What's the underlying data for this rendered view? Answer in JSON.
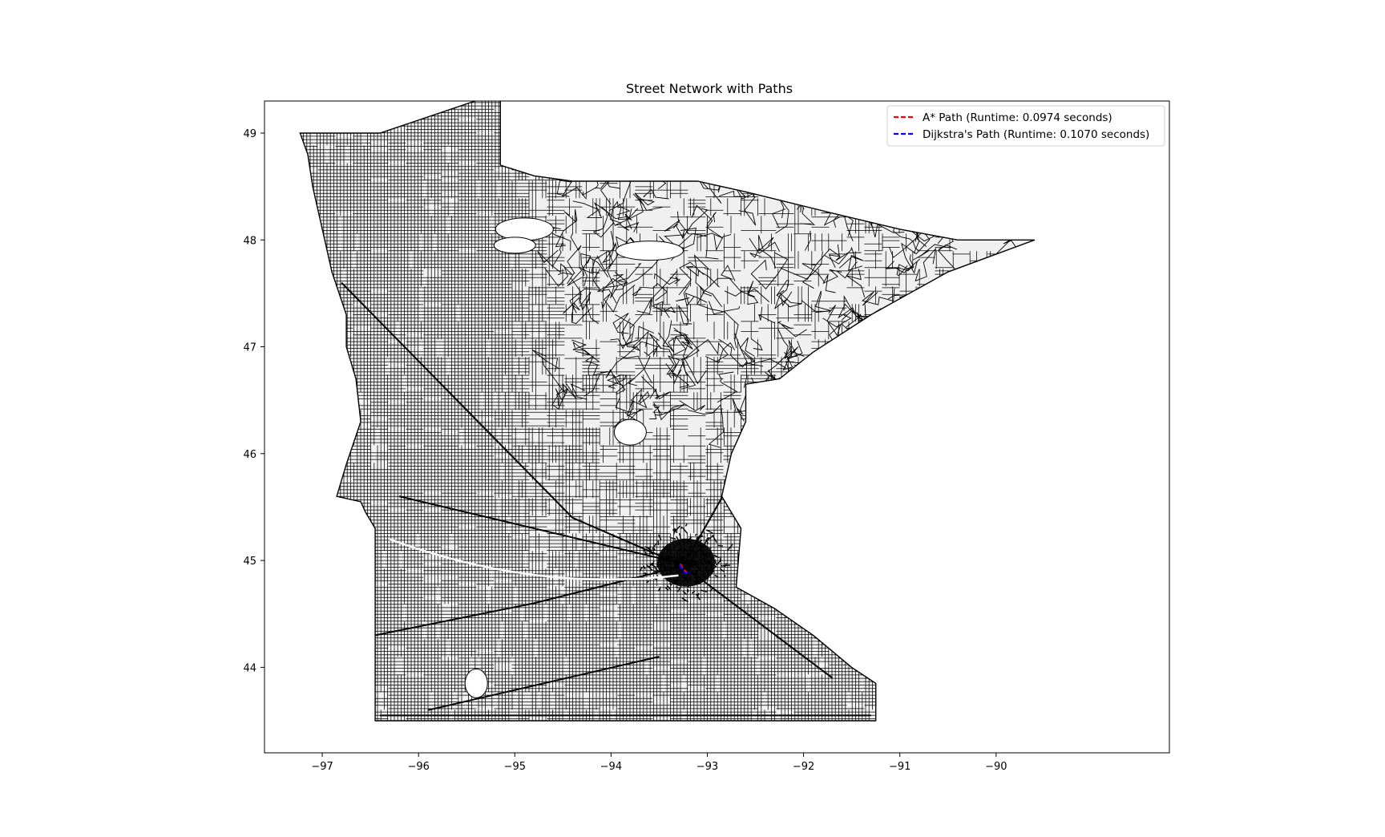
{
  "chart_data": {
    "type": "line",
    "title": "Street Network with Paths",
    "xlabel": "",
    "ylabel": "",
    "xlim": [
      -97.6,
      -88.2
    ],
    "ylim": [
      43.2,
      49.3
    ],
    "x_ticks": [
      -97,
      -96,
      -95,
      -94,
      -93,
      -92,
      -91,
      -90
    ],
    "y_ticks": [
      44,
      45,
      46,
      47,
      48,
      49
    ],
    "grid": false,
    "legend_position": "upper right",
    "network_color": "#000000",
    "series": [
      {
        "name": "A* Path (Runtime: 0.0974 seconds)",
        "color": "#ff0000",
        "style": "dashed",
        "x": [
          -93.28,
          -93.27,
          -93.25,
          -93.23,
          -93.21,
          -93.19
        ],
        "y": [
          44.97,
          44.95,
          44.92,
          44.9,
          44.88,
          44.87
        ]
      },
      {
        "name": "Dijkstra's Path (Runtime: 0.1070 seconds)",
        "color": "#0000ff",
        "style": "dashed",
        "x": [
          -93.29,
          -93.28,
          -93.26,
          -93.24,
          -93.22,
          -93.2,
          -93.18
        ],
        "y": [
          44.96,
          44.94,
          44.91,
          44.89,
          44.88,
          44.88,
          44.89
        ]
      }
    ],
    "street_network": {
      "boundary_lon": [
        -97.23,
        -96.4,
        -95.15,
        -95.15,
        -94.8,
        -94.4,
        -93.7,
        -93.1,
        -92.6,
        -91.7,
        -91.0,
        -90.4,
        -89.6,
        -90.5,
        -91.3,
        -91.9,
        -92.25,
        -92.6,
        -92.6,
        -92.75,
        -92.85,
        -92.65,
        -92.7,
        -92.3,
        -91.9,
        -91.5,
        -91.25,
        -91.25,
        -96.45,
        -96.45,
        -96.55,
        -96.6,
        -96.85,
        -96.75,
        -96.6,
        -96.65,
        -96.75,
        -96.75,
        -96.9,
        -97.0,
        -97.1,
        -97.15,
        -97.23
      ],
      "boundary_lat": [
        49.0,
        49.0,
        49.38,
        48.7,
        48.6,
        48.55,
        48.55,
        48.55,
        48.45,
        48.25,
        48.1,
        48.0,
        48.0,
        47.7,
        47.3,
        46.95,
        46.7,
        46.65,
        46.3,
        46.0,
        45.6,
        45.3,
        44.75,
        44.55,
        44.3,
        44.0,
        43.85,
        43.5,
        43.5,
        45.3,
        45.45,
        45.55,
        45.6,
        45.9,
        46.3,
        46.7,
        47.0,
        47.3,
        47.7,
        48.1,
        48.5,
        48.8,
        49.0
      ]
    }
  }
}
